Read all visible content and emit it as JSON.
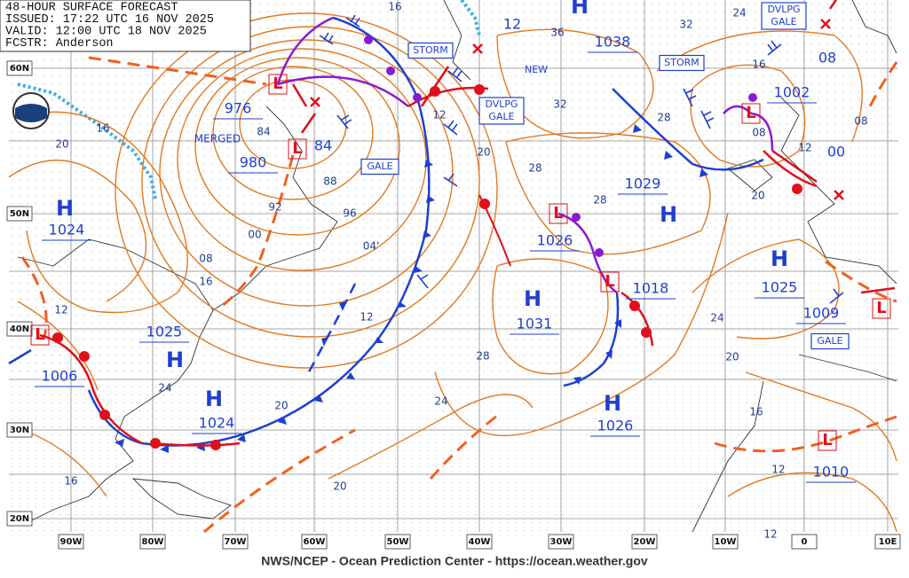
{
  "header": {
    "lines": [
      "48-HOUR SURFACE FORECAST",
      "ISSUED: 17:22 UTC 16 NOV 2025",
      "VALID: 12:00 UTC 18 NOV 2025",
      "FCSTR: Anderson"
    ]
  },
  "latitude_labels": [
    "60N",
    "50N",
    "40N",
    "30N",
    "20N"
  ],
  "longitude_labels": [
    "90W",
    "80W",
    "70W",
    "60W",
    "50W",
    "40W",
    "30W",
    "20W",
    "10W",
    "0",
    "10E"
  ],
  "pressure_centers": [
    {
      "symbol": "L",
      "value": "976"
    },
    {
      "symbol": "L",
      "value": "980"
    },
    {
      "symbol": "H",
      "value": "1024"
    },
    {
      "symbol": "H",
      "value": "1038"
    },
    {
      "symbol": "L",
      "value": "1026"
    },
    {
      "symbol": "H",
      "value": "1029"
    },
    {
      "symbol": "H",
      "value": "1031"
    },
    {
      "symbol": "L",
      "value": "1018"
    },
    {
      "symbol": "H",
      "value": "1025"
    },
    {
      "symbol": "L",
      "value": "1002"
    },
    {
      "symbol": "L",
      "value": "1009"
    },
    {
      "symbol": "H",
      "value": "1025"
    },
    {
      "symbol": "L",
      "value": "1006"
    },
    {
      "symbol": "H",
      "value": "1024"
    },
    {
      "symbol": "H",
      "value": "1026"
    },
    {
      "symbol": "L",
      "value": "1010"
    }
  ],
  "center_notes": [
    "84",
    "MERGED",
    "NEW",
    "12",
    "08",
    "00"
  ],
  "warnings": [
    "STORM",
    "DVLPG GALE",
    "GALE",
    "STORM",
    "DVLPG GALE",
    "GALE"
  ],
  "isobar_labels": [
    "16",
    "36",
    "32",
    "24",
    "16",
    "32",
    "28",
    "12",
    "08",
    "12",
    "08",
    "20",
    "28",
    "28",
    "20",
    "20",
    "16",
    "84",
    "88",
    "92",
    "96",
    "00",
    "04'",
    "08",
    "16",
    "12",
    "12",
    "24",
    "28",
    "20",
    "24",
    "24",
    "20",
    "16",
    "12",
    "16",
    "20",
    "12"
  ],
  "footer": "NWS/NCEP - Ocean Prediction Center - https://ocean.weather.gov"
}
